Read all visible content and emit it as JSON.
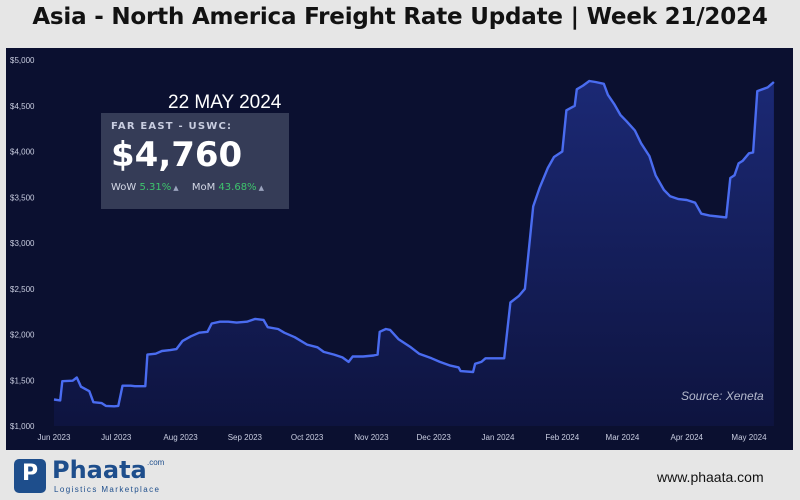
{
  "header": {
    "title": "Asia - North America Freight Rate Update | Week 21/2024"
  },
  "colors": {
    "panel_background": "#0b1030",
    "line": "#4a6cf0",
    "area_fill": "#1a2766",
    "card_background": "#353c57",
    "positive_change": "#3ec46d"
  },
  "callout": {
    "date": "22 MAY 2024",
    "lane": "FAR EAST - USWC:",
    "price": "$4,760",
    "wow_label": "WoW",
    "wow_value": "5.31%",
    "mom_label": "MoM",
    "mom_value": "43.68%"
  },
  "source": "Source: Xeneta",
  "footer": {
    "brand_name": "Phaata",
    "brand_suffix": ".com",
    "brand_tagline": "Logistics Marketplace",
    "website": "www.phaata.com"
  },
  "chart_data": {
    "type": "area",
    "title": "Asia - North America Freight Rate Update | Week 21/2024",
    "xlabel": "",
    "ylabel": "",
    "ylim": [
      1000,
      5000
    ],
    "grid": false,
    "legend": "none",
    "y_ticks": [
      {
        "value": 1000,
        "label": "$1,000"
      },
      {
        "value": 1500,
        "label": "$1,500"
      },
      {
        "value": 2000,
        "label": "$2,000"
      },
      {
        "value": 2500,
        "label": "$2,500"
      },
      {
        "value": 3000,
        "label": "$3,000"
      },
      {
        "value": 3500,
        "label": "$3,500"
      },
      {
        "value": 4000,
        "label": "$4,000"
      },
      {
        "value": 4500,
        "label": "$4,500"
      },
      {
        "value": 5000,
        "label": "$5,000"
      }
    ],
    "x_ticks": [
      {
        "date": "2023-06-01",
        "label": "Jun 2023"
      },
      {
        "date": "2023-07-01",
        "label": "Jul 2023"
      },
      {
        "date": "2023-08-01",
        "label": "Aug 2023"
      },
      {
        "date": "2023-09-01",
        "label": "Sep 2023"
      },
      {
        "date": "2023-10-01",
        "label": "Oct 2023"
      },
      {
        "date": "2023-11-01",
        "label": "Nov 2023"
      },
      {
        "date": "2023-12-01",
        "label": "Dec 2023"
      },
      {
        "date": "2024-01-01",
        "label": "Jan 2024"
      },
      {
        "date": "2024-02-01",
        "label": "Feb 2024"
      },
      {
        "date": "2024-03-01",
        "label": "Mar 2024"
      },
      {
        "date": "2024-04-01",
        "label": "Apr 2024"
      },
      {
        "date": "2024-05-01",
        "label": "May 2024"
      }
    ],
    "series": [
      {
        "points": [
          [
            "2023-06-01",
            1290
          ],
          [
            "2023-06-04",
            1280
          ],
          [
            "2023-06-05",
            1490
          ],
          [
            "2023-06-10",
            1495
          ],
          [
            "2023-06-12",
            1530
          ],
          [
            "2023-06-14",
            1430
          ],
          [
            "2023-06-18",
            1380
          ],
          [
            "2023-06-20",
            1260
          ],
          [
            "2023-06-24",
            1250
          ],
          [
            "2023-06-26",
            1220
          ],
          [
            "2023-06-30",
            1215
          ],
          [
            "2023-07-02",
            1220
          ],
          [
            "2023-07-04",
            1440
          ],
          [
            "2023-07-08",
            1440
          ],
          [
            "2023-07-10",
            1435
          ],
          [
            "2023-07-15",
            1435
          ],
          [
            "2023-07-16",
            1780
          ],
          [
            "2023-07-20",
            1790
          ],
          [
            "2023-07-23",
            1820
          ],
          [
            "2023-07-27",
            1830
          ],
          [
            "2023-07-30",
            1840
          ],
          [
            "2023-08-02",
            1930
          ],
          [
            "2023-08-06",
            1980
          ],
          [
            "2023-08-10",
            2020
          ],
          [
            "2023-08-14",
            2030
          ],
          [
            "2023-08-16",
            2120
          ],
          [
            "2023-08-20",
            2140
          ],
          [
            "2023-08-24",
            2140
          ],
          [
            "2023-08-28",
            2130
          ],
          [
            "2023-09-02",
            2140
          ],
          [
            "2023-09-06",
            2170
          ],
          [
            "2023-09-10",
            2160
          ],
          [
            "2023-09-12",
            2080
          ],
          [
            "2023-09-17",
            2060
          ],
          [
            "2023-09-20",
            2020
          ],
          [
            "2023-09-25",
            1970
          ],
          [
            "2023-10-01",
            1890
          ],
          [
            "2023-10-06",
            1860
          ],
          [
            "2023-10-09",
            1810
          ],
          [
            "2023-10-14",
            1780
          ],
          [
            "2023-10-18",
            1750
          ],
          [
            "2023-10-21",
            1700
          ],
          [
            "2023-10-23",
            1760
          ],
          [
            "2023-10-28",
            1760
          ],
          [
            "2023-11-02",
            1770
          ],
          [
            "2023-11-04",
            1780
          ],
          [
            "2023-11-05",
            2030
          ],
          [
            "2023-11-08",
            2060
          ],
          [
            "2023-11-10",
            2050
          ],
          [
            "2023-11-14",
            1950
          ],
          [
            "2023-11-20",
            1860
          ],
          [
            "2023-11-24",
            1790
          ],
          [
            "2023-11-30",
            1740
          ],
          [
            "2023-12-04",
            1700
          ],
          [
            "2023-12-09",
            1660
          ],
          [
            "2023-12-13",
            1640
          ],
          [
            "2023-12-14",
            1600
          ],
          [
            "2023-12-20",
            1590
          ],
          [
            "2023-12-21",
            1680
          ],
          [
            "2023-12-24",
            1700
          ],
          [
            "2023-12-26",
            1740
          ],
          [
            "2024-01-04",
            1740
          ],
          [
            "2024-01-07",
            2350
          ],
          [
            "2024-01-11",
            2420
          ],
          [
            "2024-01-14",
            2500
          ],
          [
            "2024-01-18",
            3400
          ],
          [
            "2024-01-21",
            3600
          ],
          [
            "2024-01-25",
            3820
          ],
          [
            "2024-01-28",
            3940
          ],
          [
            "2024-02-01",
            4000
          ],
          [
            "2024-02-03",
            4450
          ],
          [
            "2024-02-07",
            4500
          ],
          [
            "2024-02-08",
            4680
          ],
          [
            "2024-02-11",
            4720
          ],
          [
            "2024-02-14",
            4770
          ],
          [
            "2024-02-17",
            4760
          ],
          [
            "2024-02-21",
            4740
          ],
          [
            "2024-02-23",
            4620
          ],
          [
            "2024-02-26",
            4520
          ],
          [
            "2024-02-29",
            4400
          ],
          [
            "2024-03-03",
            4330
          ],
          [
            "2024-03-07",
            4230
          ],
          [
            "2024-03-10",
            4090
          ],
          [
            "2024-03-14",
            3950
          ],
          [
            "2024-03-17",
            3740
          ],
          [
            "2024-03-21",
            3580
          ],
          [
            "2024-03-24",
            3510
          ],
          [
            "2024-03-28",
            3480
          ],
          [
            "2024-04-01",
            3470
          ],
          [
            "2024-04-05",
            3440
          ],
          [
            "2024-04-08",
            3320
          ],
          [
            "2024-04-12",
            3300
          ],
          [
            "2024-04-16",
            3290
          ],
          [
            "2024-04-20",
            3280
          ],
          [
            "2024-04-22",
            3710
          ],
          [
            "2024-04-24",
            3740
          ],
          [
            "2024-04-26",
            3870
          ],
          [
            "2024-04-28",
            3900
          ],
          [
            "2024-05-01",
            3980
          ],
          [
            "2024-05-03",
            3990
          ],
          [
            "2024-05-05",
            4660
          ],
          [
            "2024-05-10",
            4700
          ],
          [
            "2024-05-13",
            4760
          ]
        ]
      }
    ]
  }
}
